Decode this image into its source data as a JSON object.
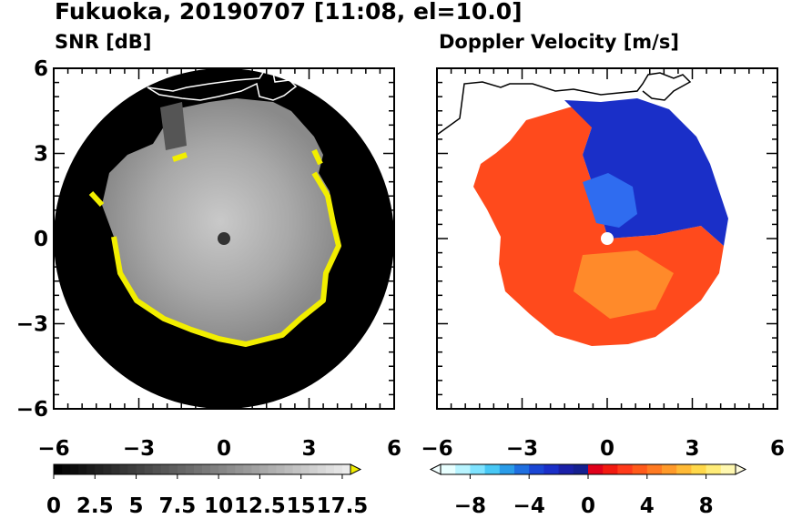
{
  "title": "Fukuoka, 20190707 [11:08, el=10.0]",
  "chart_data": [
    {
      "type": "heatmap",
      "subtitle": "SNR [dB]",
      "x_ticks": [
        "−6",
        "−3",
        "0",
        "3",
        "6"
      ],
      "y_ticks": [
        "6",
        "3",
        "0",
        "−3",
        "−6"
      ],
      "xlim": [
        -6,
        6
      ],
      "ylim": [
        -6,
        6
      ],
      "colorbar_ticks": [
        "0",
        "2.5",
        "5",
        "7.5",
        "10",
        "12.5",
        "15",
        "17.5"
      ],
      "colorbar_range": [
        0,
        18
      ],
      "colormap": "black-to-white, yellow above max"
    },
    {
      "type": "heatmap",
      "subtitle": "Doppler Velocity [m/s]",
      "x_ticks": [
        "−6",
        "−3",
        "0",
        "3",
        "6"
      ],
      "xlim": [
        -6,
        6
      ],
      "ylim": [
        -6,
        6
      ],
      "colorbar_ticks": [
        "−8",
        "−4",
        "0",
        "4",
        "8"
      ],
      "colorbar_range": [
        -10,
        10
      ],
      "colormap": "cyan-blue (negative) to red-orange-yellow (positive)"
    }
  ],
  "colors": {
    "snr_max": "#f2ee00",
    "vel_negative": "#1a2fc8",
    "vel_positive": "#ff4a1c"
  }
}
